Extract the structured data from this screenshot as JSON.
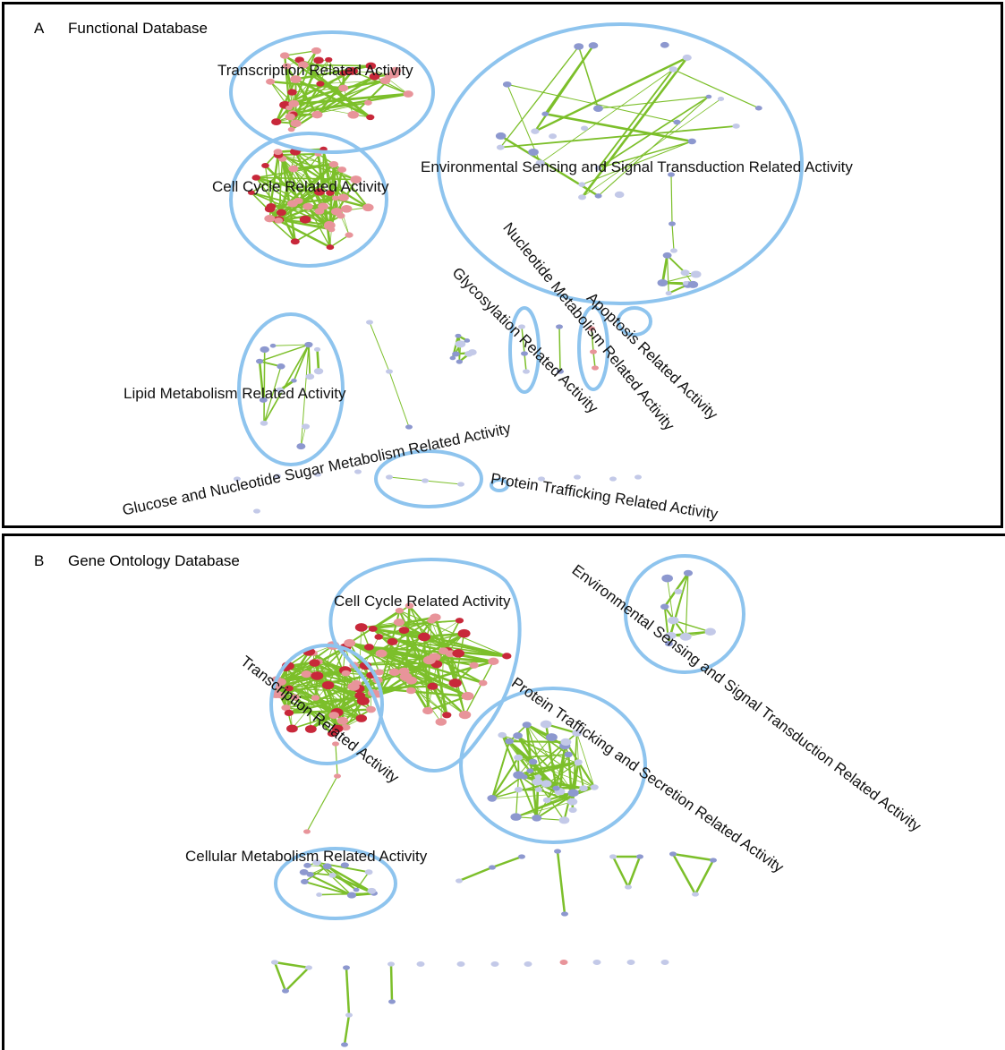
{
  "colors": {
    "edge": "#7cbf2a",
    "cluster_outline": "#8ec4ee",
    "node_up": "#c8283a",
    "node_up_light": "#e8949a",
    "node_down": "#8d98cf",
    "node_down_light": "#c3c9e8"
  },
  "panel_a": {
    "letter": "A",
    "title": "Functional Database",
    "clusters": [
      {
        "name": "transcription",
        "label": "Transcription Related Activity"
      },
      {
        "name": "cell-cycle",
        "label": "Cell Cycle Related Activity"
      },
      {
        "name": "environmental-sensing",
        "label": "Environmental Sensing and Signal Transduction Related Activity"
      },
      {
        "name": "lipid-metabolism",
        "label": "Lipid Metabolism Related Activity"
      },
      {
        "name": "glycosylation",
        "label": "Glycosylation Related Activity"
      },
      {
        "name": "nucleotide-metabolism",
        "label": "Nucleotide Metabolism Related Activity"
      },
      {
        "name": "apoptosis",
        "label": "Apoptosis Related Activity"
      },
      {
        "name": "glucose-nucleotide-sugar",
        "label": "Glucose and Nucleotide Sugar Metabolism Related Activity"
      },
      {
        "name": "protein-trafficking",
        "label": "Protein Trafficking Related Activity"
      }
    ]
  },
  "panel_b": {
    "letter": "B",
    "title": "Gene Ontology Database",
    "clusters": [
      {
        "name": "cell-cycle",
        "label": "Cell Cycle Related Activity"
      },
      {
        "name": "transcription",
        "label": "Transcription Related Activity"
      },
      {
        "name": "protein-trafficking-secretion",
        "label": "Protein Trafficking and Secretion Related Activity"
      },
      {
        "name": "environmental-sensing",
        "label": "Environmental Sensing and Signal Transduction Related Activity"
      },
      {
        "name": "cellular-metabolism",
        "label": "Cellular Metabolism Related Activity"
      }
    ]
  }
}
